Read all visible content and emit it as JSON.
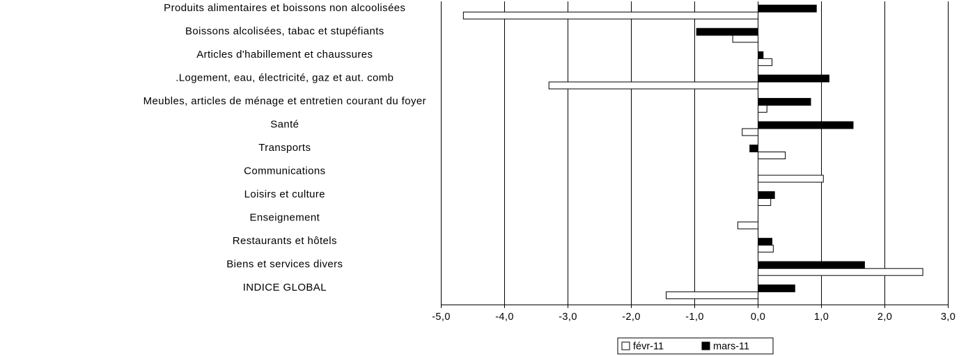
{
  "chart_data": {
    "type": "bar",
    "orientation": "horizontal",
    "categories": [
      "Produits alimentaires et boissons non alcoolisées",
      "Boissons alcolisées, tabac et stupéfiants",
      "Articles d'habillement et chaussures",
      ".Logement, eau, électricité, gaz et aut. comb",
      "Meubles, articles de ménage et entretien courant du foyer",
      "Santé",
      "Transports",
      "Communications",
      "Loisirs et culture",
      "Enseignement",
      "Restaurants et hôtels",
      "Biens et services divers",
      "INDICE GLOBAL"
    ],
    "series": [
      {
        "name": "févr-11",
        "values": [
          -4.65,
          -0.4,
          0.22,
          -3.3,
          0.14,
          -0.25,
          0.43,
          1.03,
          0.2,
          -0.32,
          0.24,
          2.6,
          -1.45
        ],
        "color": "#ffffff"
      },
      {
        "name": "mars-11",
        "values": [
          0.92,
          -0.97,
          0.08,
          1.12,
          0.83,
          1.5,
          -0.13,
          0.0,
          0.26,
          0.0,
          0.22,
          1.68,
          0.58
        ],
        "color": "#000000"
      }
    ],
    "xlim": [
      -5,
      3
    ],
    "xticks": [
      -5,
      -4,
      -3,
      -2,
      -1,
      0,
      1,
      2,
      3
    ],
    "xtick_labels": [
      "-5,0",
      "-4,0",
      "-3,0",
      "-2,0",
      "-1,0",
      "0,0",
      "1,0",
      "2,0",
      "3,0"
    ],
    "grid": "vertical",
    "legend_position": "bottom"
  }
}
